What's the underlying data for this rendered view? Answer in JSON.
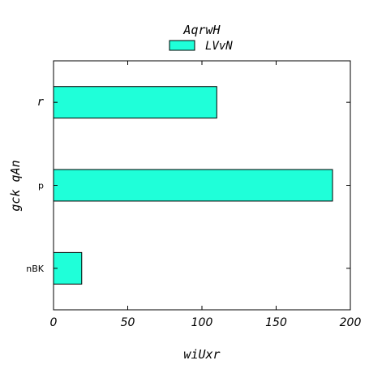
{
  "chart_data": {
    "type": "bar",
    "orientation": "horizontal",
    "title": "AqrwH",
    "xlabel": "wiUxr",
    "ylabel": "gck qAn",
    "categories": [
      "nBK",
      "p",
      "r"
    ],
    "series": [
      {
        "name": "LVvN",
        "values": [
          19,
          188,
          110
        ],
        "color": "#1fffd9"
      }
    ],
    "xlim": [
      0,
      200
    ],
    "xticks": [
      0,
      50,
      100,
      150,
      200
    ],
    "legend_position": "top-center",
    "grid": false
  }
}
